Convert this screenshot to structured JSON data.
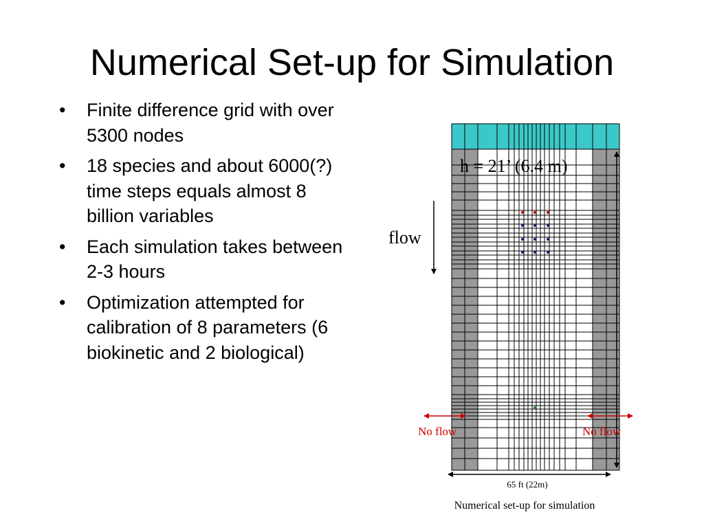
{
  "slide": {
    "title": "Numerical Set-up for Simulation",
    "bullets": [
      "Finite difference grid with over 5300 nodes",
      "18 species and about 6000(?) time steps equals almost 8 billion variables",
      "Each simulation takes between 2-3 hours",
      "Optimization attempted for calibration of 8 parameters (6 biokinetic and 2 biological)"
    ]
  },
  "diagram": {
    "head_label": "h = 21’ (6.4 m)",
    "flow_label": "flow",
    "no_flow_left": "No flow",
    "no_flow_right": "No flow",
    "width_label": "65 ft (22m)",
    "caption": "Numerical set-up for simulation",
    "colors": {
      "top_band": "#3cc8c8",
      "side_wall": "#999999",
      "no_flow": "#cc0000",
      "red_dots": "#c00000",
      "blue_dots": "#1a1a80",
      "green_dot": "#228822"
    }
  }
}
